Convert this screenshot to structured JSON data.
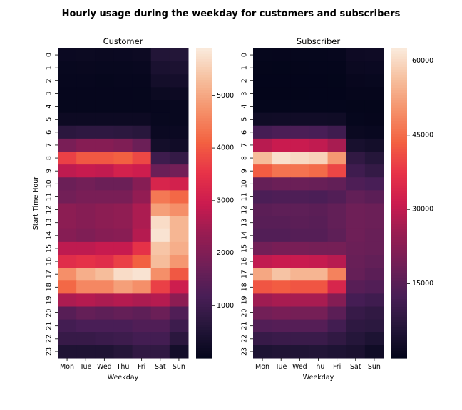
{
  "chart_data": {
    "type": "heatmap",
    "title": "Hourly usage during the weekday for customers and subscribers",
    "panels": [
      {
        "title": "Customer",
        "xlabel": "Weekday",
        "ylabel": "Start Time Hour",
        "x": [
          "Mon",
          "Tue",
          "Wed",
          "Thu",
          "Fri",
          "Sat",
          "Sun"
        ],
        "y": [
          "0",
          "1",
          "2",
          "3",
          "4",
          "5",
          "6",
          "7",
          "8",
          "9",
          "10",
          "11",
          "12",
          "13",
          "14",
          "15",
          "16",
          "17",
          "18",
          "19",
          "20",
          "21",
          "22",
          "23"
        ],
        "colorbar": {
          "min": 0,
          "max": 5900,
          "ticks": [
            1000,
            2000,
            3000,
            4000,
            5000
          ]
        },
        "values": [
          [
            150,
            160,
            140,
            150,
            180,
            550,
            580
          ],
          [
            90,
            100,
            90,
            90,
            110,
            420,
            440
          ],
          [
            70,
            70,
            60,
            70,
            80,
            300,
            320
          ],
          [
            50,
            50,
            50,
            50,
            60,
            160,
            180
          ],
          [
            60,
            60,
            60,
            60,
            60,
            80,
            90
          ],
          [
            180,
            180,
            170,
            170,
            170,
            90,
            90
          ],
          [
            700,
            750,
            750,
            720,
            650,
            150,
            150
          ],
          [
            1900,
            2100,
            2100,
            2000,
            1700,
            300,
            250
          ],
          [
            3700,
            4000,
            4000,
            4100,
            3800,
            1000,
            850
          ],
          [
            2800,
            2900,
            2850,
            3100,
            3000,
            1700,
            1800
          ],
          [
            1700,
            1800,
            1700,
            1700,
            2100,
            3200,
            3100
          ],
          [
            1800,
            1900,
            1900,
            1900,
            2300,
            4400,
            4200
          ],
          [
            2200,
            2100,
            2200,
            2250,
            2600,
            4900,
            4700
          ],
          [
            2200,
            2100,
            2200,
            2250,
            2600,
            5700,
            5200
          ],
          [
            2100,
            2000,
            2100,
            2150,
            2700,
            5800,
            5200
          ],
          [
            2800,
            2800,
            2900,
            2900,
            3500,
            5400,
            5100
          ],
          [
            3400,
            3500,
            3400,
            3700,
            4100,
            5300,
            4800
          ],
          [
            4700,
            5100,
            5300,
            5700,
            5800,
            4700,
            4000
          ],
          [
            4200,
            4600,
            4600,
            4900,
            4700,
            3700,
            3000
          ],
          [
            2600,
            2700,
            2600,
            2700,
            2600,
            2700,
            2200
          ],
          [
            1400,
            1600,
            1500,
            1600,
            1500,
            1700,
            1300
          ],
          [
            1100,
            1200,
            1200,
            1200,
            1300,
            1300,
            1000
          ],
          [
            900,
            900,
            950,
            1000,
            1100,
            1100,
            700
          ],
          [
            500,
            500,
            500,
            600,
            800,
            800,
            300
          ]
        ]
      },
      {
        "title": "Subscriber",
        "xlabel": "Weekday",
        "ylabel": "",
        "x": [
          "Mon",
          "Tue",
          "Wed",
          "Thu",
          "Fri",
          "Sat",
          "Sun"
        ],
        "y": [
          "0",
          "1",
          "2",
          "3",
          "4",
          "5",
          "6",
          "7",
          "8",
          "9",
          "10",
          "11",
          "12",
          "13",
          "14",
          "15",
          "16",
          "17",
          "18",
          "19",
          "20",
          "21",
          "22",
          "23"
        ],
        "colorbar": {
          "min": 0,
          "max": 62500,
          "ticks": [
            15000,
            30000,
            45000,
            60000
          ]
        },
        "values": [
          [
            600,
            550,
            600,
            650,
            800,
            2000,
            2200
          ],
          [
            300,
            250,
            300,
            350,
            400,
            1500,
            1600
          ],
          [
            150,
            150,
            150,
            170,
            200,
            900,
            1000
          ],
          [
            100,
            100,
            100,
            120,
            150,
            500,
            500
          ],
          [
            400,
            400,
            400,
            400,
            400,
            300,
            300
          ],
          [
            2500,
            2700,
            2700,
            2600,
            2400,
            600,
            500
          ],
          [
            12000,
            13000,
            13000,
            12500,
            11000,
            1500,
            1200
          ],
          [
            29000,
            31000,
            31000,
            30000,
            27000,
            4000,
            3200
          ],
          [
            56000,
            61000,
            60000,
            59000,
            51000,
            8500,
            6500
          ],
          [
            43000,
            46000,
            46000,
            45000,
            40000,
            11000,
            9000
          ],
          [
            17000,
            18000,
            18000,
            17500,
            16500,
            13500,
            12500
          ],
          [
            13000,
            13500,
            13500,
            13000,
            14000,
            16500,
            15500
          ],
          [
            15500,
            16000,
            16000,
            15500,
            16500,
            18500,
            18000
          ],
          [
            15000,
            15000,
            15500,
            15000,
            16500,
            18500,
            18000
          ],
          [
            14000,
            14000,
            14500,
            14500,
            16000,
            18500,
            17500
          ],
          [
            19000,
            20000,
            20000,
            19500,
            19500,
            18000,
            17500
          ],
          [
            30000,
            31000,
            31000,
            30500,
            29000,
            17500,
            16500
          ],
          [
            53000,
            57000,
            55000,
            55000,
            48000,
            17000,
            15500
          ],
          [
            42000,
            43000,
            42000,
            42000,
            34000,
            15000,
            14000
          ],
          [
            26000,
            27000,
            27000,
            27000,
            22000,
            12000,
            11000
          ],
          [
            19000,
            20000,
            19500,
            19500,
            15500,
            9500,
            8500
          ],
          [
            14000,
            14500,
            14500,
            14500,
            11500,
            8000,
            7500
          ],
          [
            9500,
            10000,
            10000,
            10000,
            8500,
            6500,
            5000
          ],
          [
            5000,
            5500,
            5500,
            5800,
            5200,
            4500,
            2500
          ]
        ]
      }
    ]
  }
}
